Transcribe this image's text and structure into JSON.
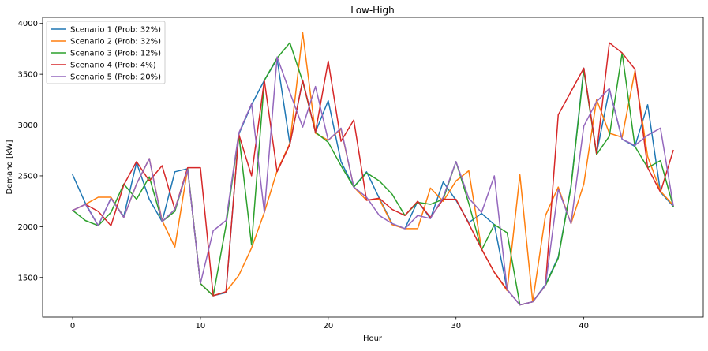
{
  "chart_data": {
    "type": "line",
    "title": "Low-High",
    "xlabel": "Hour",
    "ylabel": "Demand [kW]",
    "xlim": [
      -2.35,
      49.35
    ],
    "ylim": [
      1110,
      4060
    ],
    "xticks": [
      0,
      10,
      20,
      30,
      40
    ],
    "yticks": [
      1500,
      2000,
      2500,
      3000,
      3500,
      4000
    ],
    "grid": false,
    "legend_position": "top-left",
    "x": [
      0,
      1,
      2,
      3,
      4,
      5,
      6,
      7,
      8,
      9,
      10,
      11,
      12,
      13,
      14,
      15,
      16,
      17,
      18,
      19,
      20,
      21,
      22,
      23,
      24,
      25,
      26,
      27,
      28,
      29,
      30,
      31,
      32,
      33,
      34,
      35,
      36,
      37,
      38,
      39,
      40,
      41,
      42,
      43,
      44,
      45,
      46,
      47
    ],
    "series": [
      {
        "name": "Scenario 1 (Prob: 32%)",
        "color": "#1f77b4",
        "values": [
          2510,
          2230,
          2010,
          2280,
          2100,
          2630,
          2270,
          2050,
          2540,
          2570,
          1440,
          1320,
          1350,
          2910,
          3200,
          3440,
          3650,
          2810,
          3440,
          2930,
          3240,
          2640,
          2390,
          2540,
          2280,
          2030,
          1980,
          2250,
          2080,
          2440,
          2260,
          2040,
          2130,
          2020,
          1380,
          1230,
          1260,
          1430,
          1700,
          2400,
          3560,
          2720,
          3350,
          2860,
          2790,
          3200,
          2340,
          2200
        ]
      },
      {
        "name": "Scenario 2 (Prob: 32%)",
        "color": "#ff7f0e",
        "values": [
          2160,
          2220,
          2290,
          2290,
          2090,
          2420,
          2670,
          2060,
          1800,
          2570,
          1440,
          1320,
          1360,
          1520,
          1790,
          2140,
          2550,
          2820,
          3910,
          2920,
          2850,
          2960,
          2390,
          2260,
          2270,
          2020,
          1980,
          1980,
          2380,
          2250,
          2450,
          2550,
          1780,
          1550,
          1370,
          2510,
          1260,
          2110,
          2390,
          2030,
          2420,
          3250,
          2920,
          2880,
          3530,
          2690,
          2350,
          2210
        ]
      },
      {
        "name": "Scenario 3 (Prob: 12%)",
        "color": "#2ca02c",
        "values": [
          2160,
          2060,
          2010,
          2140,
          2420,
          2270,
          2490,
          2050,
          2150,
          2570,
          1440,
          1320,
          2010,
          2910,
          1820,
          3440,
          3660,
          3810,
          3430,
          2930,
          2830,
          2600,
          2390,
          2530,
          2450,
          2320,
          2110,
          2240,
          2220,
          2270,
          2640,
          2230,
          1770,
          2020,
          1940,
          1230,
          1260,
          1420,
          1690,
          2390,
          3540,
          2710,
          2890,
          3710,
          2790,
          2580,
          2650,
          2200
        ]
      },
      {
        "name": "Scenario 4 (Prob: 4%)",
        "color": "#d62728",
        "values": [
          2160,
          2220,
          2150,
          2010,
          2410,
          2640,
          2450,
          2600,
          2170,
          2580,
          2580,
          1320,
          1360,
          2910,
          2500,
          3440,
          2540,
          2810,
          3440,
          2930,
          3630,
          2840,
          3050,
          2260,
          2280,
          2170,
          2110,
          2250,
          2090,
          2270,
          2270,
          2030,
          1780,
          1550,
          1380,
          1230,
          1260,
          1420,
          3100,
          3330,
          3560,
          2720,
          3810,
          3710,
          3550,
          2580,
          2340,
          2750
        ]
      },
      {
        "name": "Scenario 5 (Prob: 20%)",
        "color": "#9467bd",
        "values": [
          2160,
          2220,
          2010,
          2280,
          2090,
          2420,
          2670,
          2050,
          2170,
          2560,
          1440,
          1960,
          2060,
          2920,
          3210,
          2140,
          3670,
          3320,
          2980,
          3380,
          2850,
          2970,
          2390,
          2290,
          2110,
          2030,
          1980,
          2110,
          2080,
          2290,
          2640,
          2280,
          2140,
          2500,
          1380,
          1230,
          1260,
          1420,
          2370,
          2030,
          2990,
          3230,
          3360,
          2860,
          2800,
          2900,
          2970,
          2210
        ]
      }
    ]
  }
}
